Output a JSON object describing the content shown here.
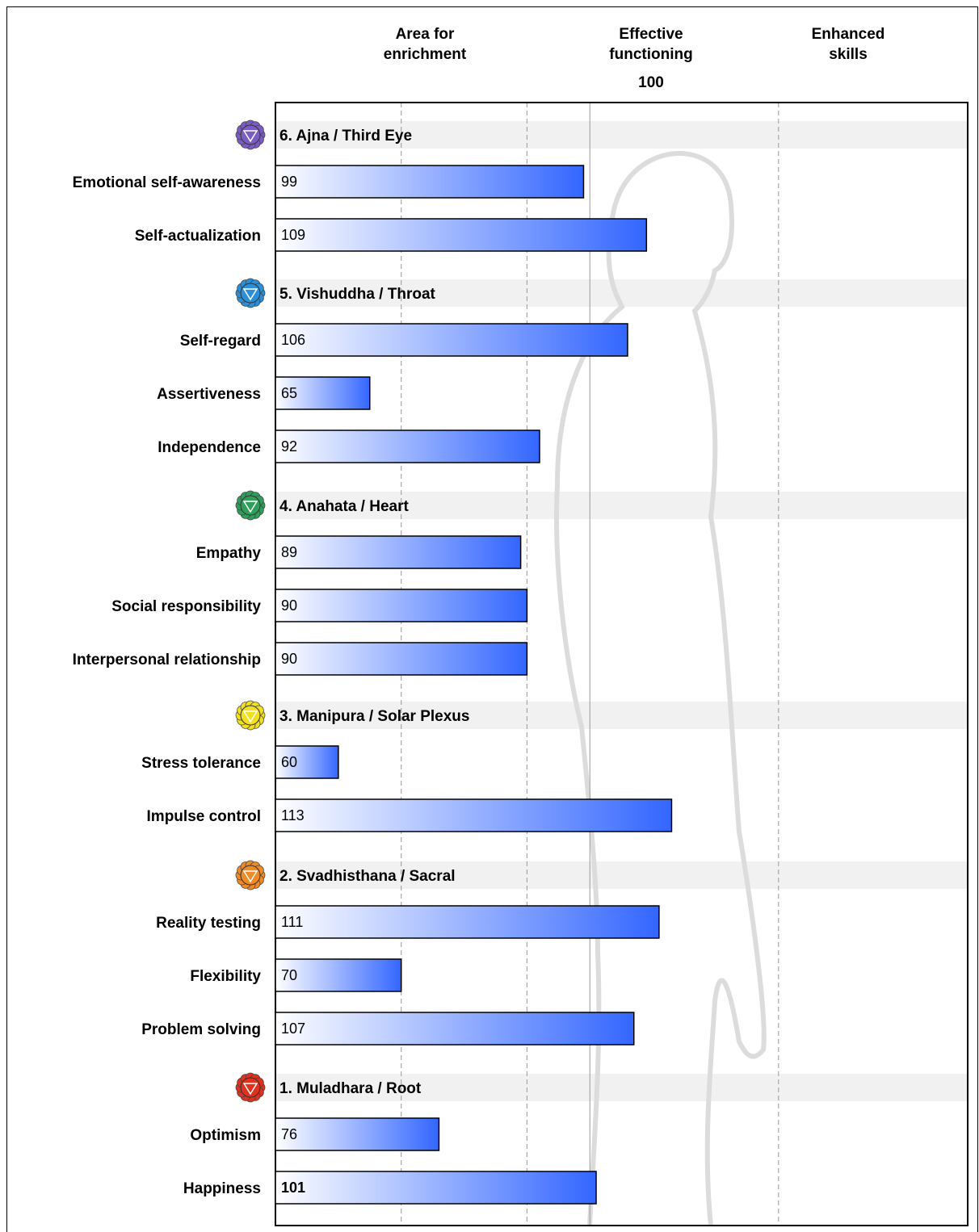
{
  "chart_data": {
    "type": "bar",
    "orientation": "horizontal",
    "header": {
      "left": "Area for\nenrichment",
      "middle": "Effective\nfunctioning",
      "right": "Enhanced\nskills",
      "reference_value": "100"
    },
    "reference_lines": [
      70,
      90,
      100,
      130
    ],
    "xlim": [
      50,
      150
    ],
    "grid": "dashed vertical",
    "bar_gradient": {
      "from": "#ffffff",
      "to": "#3366ff"
    },
    "sections": [
      {
        "title": "6. Ajna / Third Eye",
        "icon": "ajna-chakra-icon",
        "color": "#7b5cc4",
        "items": [
          {
            "label": "Emotional self-awareness",
            "value": 99
          },
          {
            "label": "Self-actualization",
            "value": 109
          }
        ]
      },
      {
        "title": "5. Vishuddha / Throat",
        "icon": "vishuddha-chakra-icon",
        "color": "#2a8fd8",
        "items": [
          {
            "label": "Self-regard",
            "value": 106
          },
          {
            "label": "Assertiveness",
            "value": 65
          },
          {
            "label": "Independence",
            "value": 92
          }
        ]
      },
      {
        "title": "4. Anahata / Heart",
        "icon": "anahata-chakra-icon",
        "color": "#2e9e5b",
        "items": [
          {
            "label": "Empathy",
            "value": 89
          },
          {
            "label": "Social responsibility",
            "value": 90
          },
          {
            "label": "Interpersonal relationship",
            "value": 90
          }
        ]
      },
      {
        "title": "3. Manipura / Solar Plexus",
        "icon": "manipura-chakra-icon",
        "color": "#f2e020",
        "items": [
          {
            "label": "Stress tolerance",
            "value": 60
          },
          {
            "label": "Impulse control",
            "value": 113
          }
        ]
      },
      {
        "title": "2. Svadhisthana / Sacral",
        "icon": "svadhisthana-chakra-icon",
        "color": "#f08a24",
        "items": [
          {
            "label": "Reality testing",
            "value": 111
          },
          {
            "label": "Flexibility",
            "value": 70
          },
          {
            "label": "Problem solving",
            "value": 107
          }
        ]
      },
      {
        "title": "1. Muladhara / Root",
        "icon": "muladhara-chakra-icon",
        "color": "#e0301e",
        "items": [
          {
            "label": "Optimism",
            "value": 76
          },
          {
            "label": "Happiness",
            "value": 101,
            "bold_value": true
          }
        ]
      }
    ]
  }
}
